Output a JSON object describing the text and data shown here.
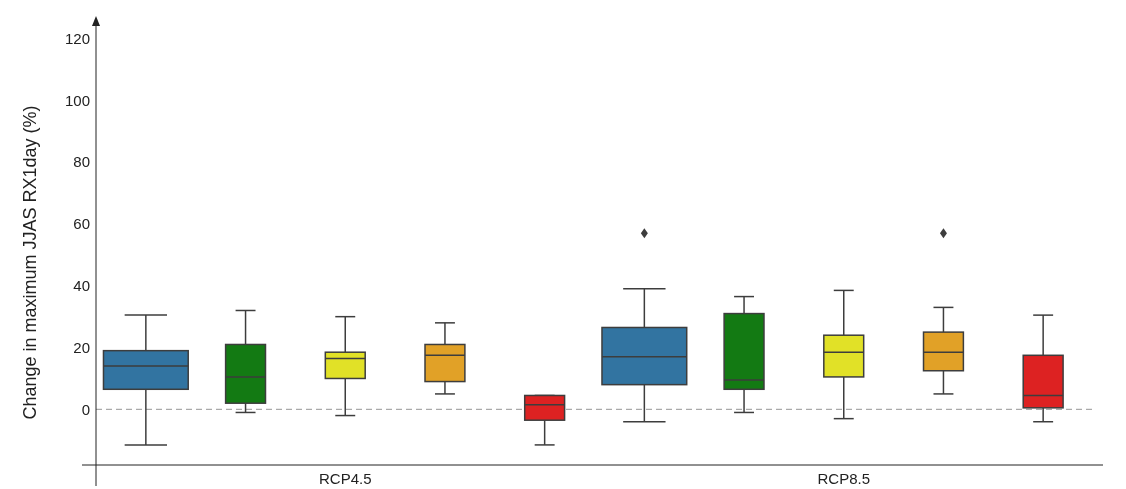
{
  "chart_data": {
    "type": "box",
    "ylabel": "Change in maximum JJAS RX1day (%)",
    "categories": [
      "RCP4.5",
      "RCP8.5"
    ],
    "ylim": [
      -18,
      126
    ],
    "yticks": [
      0,
      20,
      40,
      60,
      80,
      100,
      120
    ],
    "grid": false,
    "series": [
      {
        "color": "#3274a1",
        "boxes": [
          {
            "low": -11.5,
            "q1": 6.5,
            "median": 14,
            "q3": 19,
            "high": 30.5
          },
          {
            "low": -4,
            "q1": 8,
            "median": 17,
            "q3": 26.5,
            "high": 39,
            "outliers": [
              57
            ]
          }
        ]
      },
      {
        "color": "#137a13",
        "boxes": [
          {
            "low": -1,
            "q1": 2,
            "median": 10.5,
            "q3": 21,
            "high": 32
          },
          {
            "low": -1,
            "q1": 6.5,
            "median": 9.5,
            "q3": 31,
            "high": 36.5
          }
        ]
      },
      {
        "color": "#e1e127",
        "boxes": [
          {
            "low": -2,
            "q1": 10,
            "median": 16.5,
            "q3": 18.5,
            "high": 30
          },
          {
            "low": -3,
            "q1": 10.5,
            "median": 18.5,
            "q3": 24,
            "high": 38.5
          }
        ]
      },
      {
        "color": "#e1a127",
        "boxes": [
          {
            "low": 5,
            "q1": 9,
            "median": 17.5,
            "q3": 21,
            "high": 28
          },
          {
            "low": 5,
            "q1": 12.5,
            "median": 18.5,
            "q3": 25,
            "high": 33,
            "outliers": [
              57
            ]
          }
        ]
      },
      {
        "color": "#dd2222",
        "boxes": [
          {
            "low": -11.5,
            "q1": -3.5,
            "median": 1.5,
            "q3": 4.5,
            "high": 4.5
          },
          {
            "low": -4,
            "q1": 0.5,
            "median": 4.5,
            "q3": 17.5,
            "high": 30.5
          }
        ]
      }
    ],
    "ref_lines": [
      {
        "axis": "y",
        "value": 0,
        "color": "#aaaaaa",
        "line_style": "dashed"
      }
    ]
  }
}
